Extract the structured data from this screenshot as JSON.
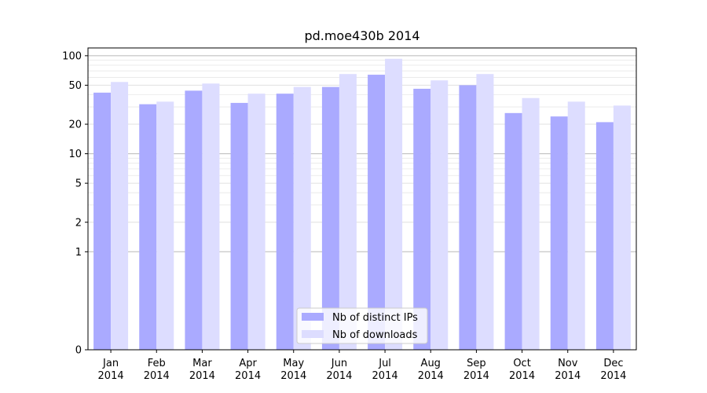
{
  "chart_data": {
    "type": "bar",
    "title": "pd.moe430b 2014",
    "xlabel": "",
    "ylabel": "",
    "yscale": "symlog",
    "ylim": [
      0,
      120
    ],
    "yticks": [
      0,
      1,
      2,
      5,
      10,
      20,
      50,
      100
    ],
    "grid": true,
    "legend_position": "bottom-center",
    "categories": [
      [
        "Jan",
        "2014"
      ],
      [
        "Feb",
        "2014"
      ],
      [
        "Mar",
        "2014"
      ],
      [
        "Apr",
        "2014"
      ],
      [
        "May",
        "2014"
      ],
      [
        "Jun",
        "2014"
      ],
      [
        "Jul",
        "2014"
      ],
      [
        "Aug",
        "2014"
      ],
      [
        "Sep",
        "2014"
      ],
      [
        "Oct",
        "2014"
      ],
      [
        "Nov",
        "2014"
      ],
      [
        "Dec",
        "2014"
      ]
    ],
    "series": [
      {
        "name": "Nb of distinct IPs",
        "color": "#aaaaff",
        "values": [
          42,
          32,
          44,
          33,
          41,
          48,
          64,
          46,
          50,
          26,
          24,
          21
        ]
      },
      {
        "name": "Nb of downloads",
        "color": "#ddddff",
        "values": [
          54,
          34,
          52,
          41,
          48,
          65,
          93,
          56,
          65,
          37,
          34,
          31
        ]
      }
    ]
  }
}
